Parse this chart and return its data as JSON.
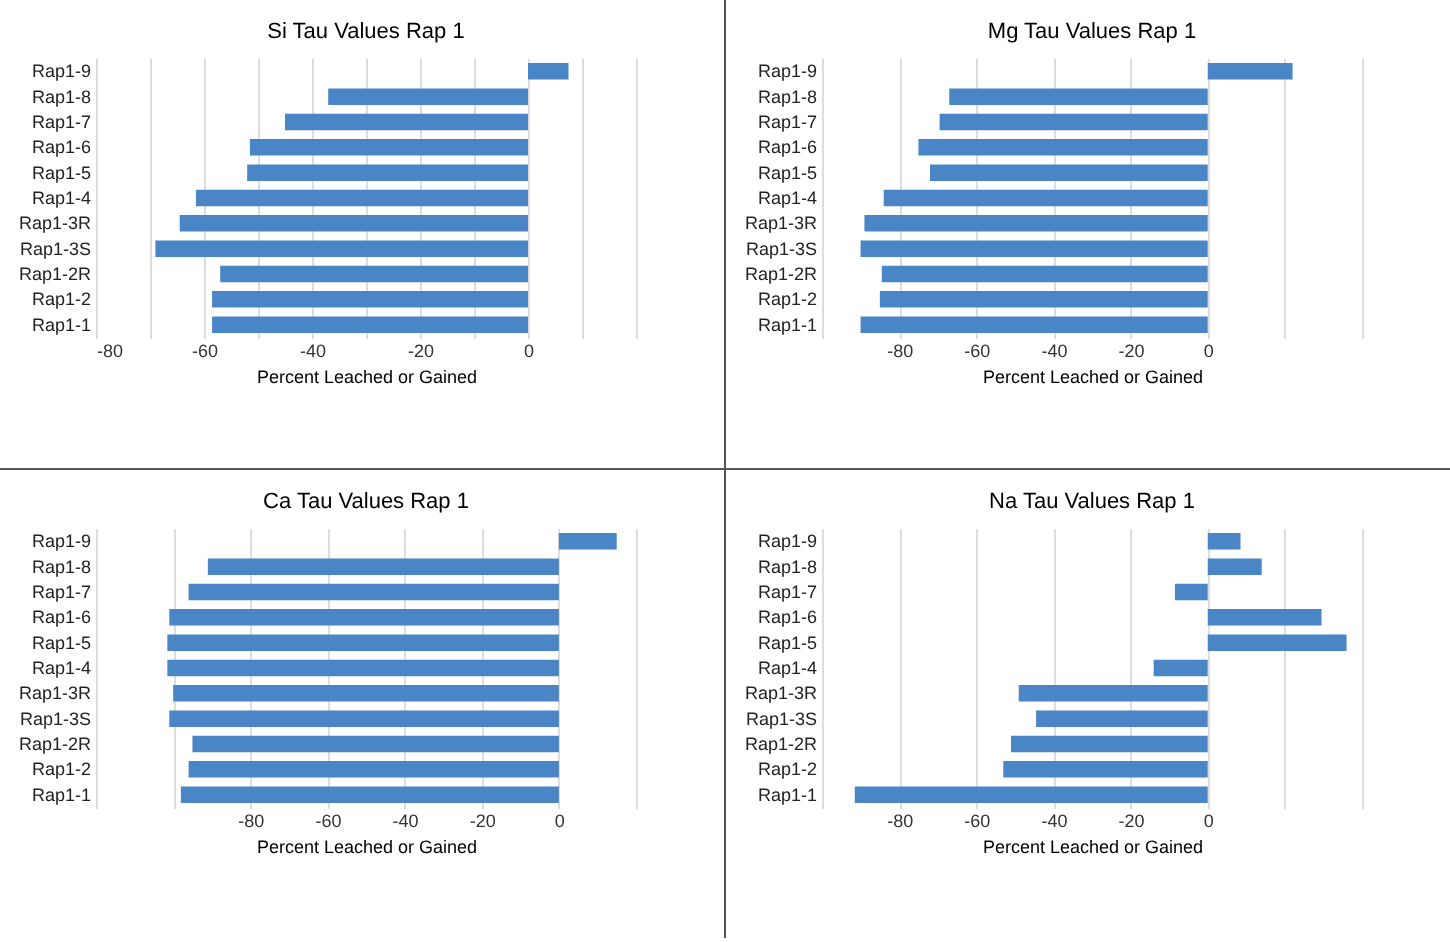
{
  "chart_data": [
    {
      "type": "bar",
      "orientation": "horizontal",
      "title": "Si Tau Values Rap 1",
      "xlabel": "Percent Leached or Gained",
      "categories": [
        "Rap1-9",
        "Rap1-8",
        "Rap1-7",
        "Rap1-6",
        "Rap1-5",
        "Rap1-4",
        "Rap1-3R",
        "Rap1-3S",
        "Rap1-2R",
        "Rap1-2",
        "Rap1-1"
      ],
      "values": [
        7.5,
        -37,
        -45,
        -51.5,
        -52,
        -61.5,
        -64.5,
        -69,
        -57,
        -58.5,
        -58.5
      ],
      "color": "#4a86c5",
      "xlim": [
        -80,
        20
      ],
      "xticks": [
        -80,
        {
          "value": -70,
          "label": null
        },
        -60,
        {
          "value": -50,
          "label": null
        },
        -40,
        {
          "value": -30,
          "label": null
        },
        -20,
        {
          "value": -10,
          "label": null
        },
        0,
        {
          "value": 10,
          "label": null
        },
        {
          "value": 20,
          "label": null
        }
      ],
      "grid": "x"
    },
    {
      "type": "bar",
      "orientation": "horizontal",
      "title": "Mg Tau Values Rap 1",
      "xlabel": "Percent Leached or Gained",
      "categories": [
        "Rap1-9",
        "Rap1-8",
        "Rap1-7",
        "Rap1-6",
        "Rap1-5",
        "Rap1-4",
        "Rap1-3R",
        "Rap1-3S",
        "Rap1-2R",
        "Rap1-2",
        "Rap1-1"
      ],
      "values": [
        22,
        -67,
        -69.5,
        -75,
        -72,
        -84,
        -89,
        -90,
        -84.5,
        -85,
        -90
      ],
      "color": "#4a86c5",
      "xlim": [
        -100,
        40
      ],
      "xticks": [
        {
          "value": -100,
          "label": null
        },
        -80,
        -60,
        -40,
        -20,
        0,
        {
          "value": 20,
          "label": null
        },
        {
          "value": 40,
          "label": null
        }
      ],
      "grid": "x"
    },
    {
      "type": "bar",
      "orientation": "horizontal",
      "title": "Ca Tau Values Rap 1",
      "xlabel": "Percent Leached or Gained",
      "categories": [
        "Rap1-9",
        "Rap1-8",
        "Rap1-7",
        "Rap1-6",
        "Rap1-5",
        "Rap1-4",
        "Rap1-3R",
        "Rap1-3S",
        "Rap1-2R",
        "Rap1-2",
        "Rap1-1"
      ],
      "values": [
        15,
        -91,
        -96,
        -101,
        -101.5,
        -101.5,
        -100,
        -101,
        -95,
        -96,
        -98
      ],
      "color": "#4a86c5",
      "xlim": [
        -120,
        20
      ],
      "xticks": [
        {
          "value": -120,
          "label": null
        },
        {
          "value": -100,
          "label": null
        },
        -80,
        -60,
        -40,
        -20,
        0,
        {
          "value": 20,
          "label": null
        }
      ],
      "grid": "x"
    },
    {
      "type": "bar",
      "orientation": "horizontal",
      "title": "Na Tau Values Rap 1",
      "xlabel": "Percent Leached or Gained",
      "categories": [
        "Rap1-9",
        "Rap1-8",
        "Rap1-7",
        "Rap1-6",
        "Rap1-5",
        "Rap1-4",
        "Rap1-3R",
        "Rap1-3S",
        "Rap1-2R",
        "Rap1-2",
        "Rap1-1"
      ],
      "values": [
        8.5,
        14,
        -8.5,
        29.5,
        36,
        -14,
        -49,
        -44.5,
        -51,
        -53,
        -91.5
      ],
      "color": "#4a86c5",
      "xlim": [
        -100,
        40
      ],
      "xticks": [
        {
          "value": -100,
          "label": null
        },
        -80,
        -60,
        -40,
        -20,
        0,
        {
          "value": 20,
          "label": null
        },
        {
          "value": 40,
          "label": null
        }
      ],
      "grid": "x"
    }
  ]
}
